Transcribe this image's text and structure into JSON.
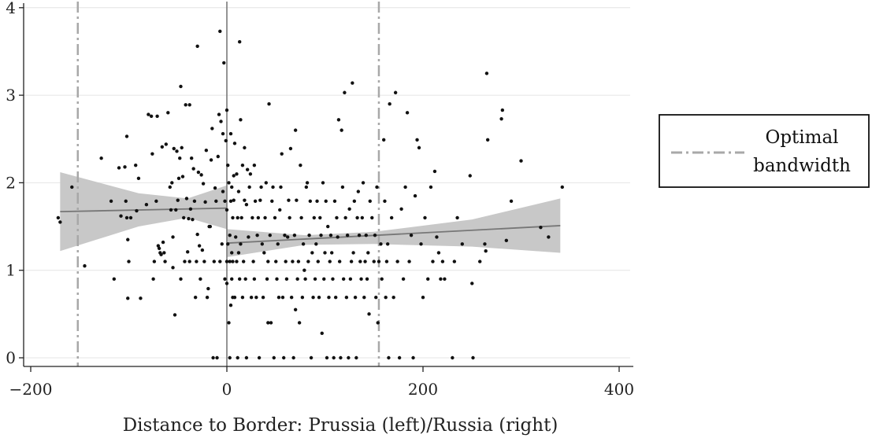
{
  "chart_data": {
    "type": "scatter",
    "title": "",
    "xlabel": "Distance to Border: Prussia (left)/Russia (right)",
    "ylabel": "",
    "xlim": [
      -210,
      410
    ],
    "ylim": [
      -0.1,
      4.1
    ],
    "xticks": [
      -200,
      0,
      200,
      400
    ],
    "xtick_labels": [
      "−200",
      "0",
      "200",
      "400"
    ],
    "yticks": [
      0,
      1,
      2,
      3,
      4
    ],
    "ytick_labels": [
      "0",
      "1",
      "2",
      "3",
      "4"
    ],
    "grid": "horizontal",
    "legend_placement": "right",
    "legend": {
      "line1": "Optimal",
      "line2": "bandwidth"
    },
    "bandwidth_lines": [
      -152,
      155
    ],
    "border_line": 0,
    "colors": {
      "points": "#111111",
      "fit_line": "#777777",
      "ci_band": "#c8c8c8",
      "bandwidth_line": "#a8a8a8",
      "border_line": "#7a7a7a",
      "grid": "#e4e4e4"
    },
    "fits": [
      {
        "segment": "left",
        "x": [
          -170,
          0
        ],
        "y": [
          1.67,
          1.71
        ],
        "ci_lower": [
          [
            -170,
            1.22
          ],
          [
            -90,
            1.5
          ],
          [
            -40,
            1.6
          ],
          [
            0,
            1.47
          ]
        ],
        "ci_upper": [
          [
            -170,
            2.12
          ],
          [
            -90,
            1.88
          ],
          [
            -40,
            1.82
          ],
          [
            0,
            1.97
          ]
        ]
      },
      {
        "segment": "right",
        "x": [
          0,
          340
        ],
        "y": [
          1.31,
          1.51
        ],
        "ci_lower": [
          [
            0,
            1.15
          ],
          [
            80,
            1.29
          ],
          [
            150,
            1.3
          ],
          [
            250,
            1.27
          ],
          [
            340,
            1.2
          ]
        ],
        "ci_upper": [
          [
            0,
            1.47
          ],
          [
            80,
            1.4
          ],
          [
            150,
            1.44
          ],
          [
            250,
            1.58
          ],
          [
            340,
            1.82
          ]
        ]
      }
    ],
    "points": [
      [
        -172,
        1.6
      ],
      [
        -170,
        1.55
      ],
      [
        -158,
        1.95
      ],
      [
        -145,
        1.05
      ],
      [
        -128,
        2.28
      ],
      [
        -118,
        1.79
      ],
      [
        -115,
        0.9
      ],
      [
        -110,
        2.17
      ],
      [
        -108,
        1.62
      ],
      [
        -104,
        2.18
      ],
      [
        -103,
        1.79
      ],
      [
        -102,
        1.6
      ],
      [
        -102,
        2.53
      ],
      [
        -101,
        1.35
      ],
      [
        -101,
        0.68
      ],
      [
        -100,
        1.1
      ],
      [
        -98,
        1.6
      ],
      [
        -93,
        2.2
      ],
      [
        -92,
        1.68
      ],
      [
        -90,
        2.05
      ],
      [
        -88,
        0.68
      ],
      [
        -82,
        1.75
      ],
      [
        -80,
        2.78
      ],
      [
        -77,
        2.76
      ],
      [
        -76,
        2.33
      ],
      [
        -75,
        0.9
      ],
      [
        -74,
        1.1
      ],
      [
        -72,
        1.79
      ],
      [
        -71,
        2.76
      ],
      [
        -70,
        1.28
      ],
      [
        -69,
        1.25
      ],
      [
        -68,
        1.2
      ],
      [
        -67,
        1.18
      ],
      [
        -66,
        2.41
      ],
      [
        -65,
        1.32
      ],
      [
        -64,
        1.2
      ],
      [
        -63,
        1.1
      ],
      [
        -62,
        2.44
      ],
      [
        -60,
        2.8
      ],
      [
        -58,
        1.95
      ],
      [
        -57,
        1.69
      ],
      [
        -56,
        2.0
      ],
      [
        -55,
        1.03
      ],
      [
        -55,
        1.38
      ],
      [
        -54,
        2.39
      ],
      [
        -53,
        0.49
      ],
      [
        -52,
        1.69
      ],
      [
        -51,
        2.36
      ],
      [
        -50,
        1.8
      ],
      [
        -49,
        2.05
      ],
      [
        -48,
        2.28
      ],
      [
        -47,
        0.9
      ],
      [
        -47,
        3.1
      ],
      [
        -46,
        2.4
      ],
      [
        -45,
        2.07
      ],
      [
        -44,
        1.6
      ],
      [
        -43,
        1.1
      ],
      [
        -42,
        2.89
      ],
      [
        -41,
        1.82
      ],
      [
        -40,
        1.21
      ],
      [
        -39,
        1.59
      ],
      [
        -38,
        1.1
      ],
      [
        -38,
        2.89
      ],
      [
        -37,
        1.7
      ],
      [
        -36,
        2.28
      ],
      [
        -35,
        1.58
      ],
      [
        -34,
        2.16
      ],
      [
        -33,
        1.79
      ],
      [
        -32,
        0.69
      ],
      [
        -31,
        1.1
      ],
      [
        -30,
        3.56
      ],
      [
        -30,
        1.41
      ],
      [
        -29,
        2.12
      ],
      [
        -28,
        1.28
      ],
      [
        -27,
        0.9
      ],
      [
        -26,
        2.09
      ],
      [
        -25,
        1.23
      ],
      [
        -24,
        1.99
      ],
      [
        -23,
        1.1
      ],
      [
        -22,
        1.78
      ],
      [
        -21,
        2.37
      ],
      [
        -20,
        0.69
      ],
      [
        -19,
        0.79
      ],
      [
        -18,
        1.5
      ],
      [
        -17,
        1.5
      ],
      [
        -16,
        2.26
      ],
      [
        -15,
        2.62
      ],
      [
        -14,
        0.0
      ],
      [
        -13,
        1.1
      ],
      [
        -12,
        1.94
      ],
      [
        -11,
        1.79
      ],
      [
        -10,
        0.0
      ],
      [
        -9,
        2.3
      ],
      [
        -8,
        2.78
      ],
      [
        -7,
        1.1
      ],
      [
        -7,
        3.73
      ],
      [
        -6,
        2.7
      ],
      [
        -5,
        1.3
      ],
      [
        -4,
        1.9
      ],
      [
        -4,
        2.56
      ],
      [
        -3,
        3.37
      ],
      [
        -2,
        1.79
      ],
      [
        -2,
        0.9
      ],
      [
        -1,
        2.48
      ],
      [
        0,
        1.1
      ],
      [
        0,
        0.85
      ],
      [
        0,
        2.83
      ],
      [
        0,
        1.69
      ],
      [
        1,
        1.3
      ],
      [
        1,
        2.2
      ],
      [
        2,
        0.4
      ],
      [
        2,
        2.0
      ],
      [
        3,
        1.1
      ],
      [
        3,
        0.0
      ],
      [
        3,
        1.4
      ],
      [
        4,
        1.79
      ],
      [
        4,
        2.56
      ],
      [
        4,
        0.6
      ],
      [
        5,
        1.2
      ],
      [
        5,
        0.9
      ],
      [
        5,
        1.95
      ],
      [
        6,
        1.1
      ],
      [
        6,
        0.69
      ],
      [
        6,
        1.6
      ],
      [
        7,
        2.08
      ],
      [
        7,
        1.8
      ],
      [
        8,
        2.45
      ],
      [
        8,
        0.69
      ],
      [
        9,
        1.38
      ],
      [
        10,
        1.1
      ],
      [
        10,
        2.1
      ],
      [
        11,
        0.0
      ],
      [
        11,
        1.6
      ],
      [
        12,
        1.9
      ],
      [
        12,
        1.2
      ],
      [
        13,
        3.61
      ],
      [
        13,
        0.9
      ],
      [
        14,
        2.72
      ],
      [
        14,
        1.3
      ],
      [
        15,
        1.6
      ],
      [
        16,
        0.69
      ],
      [
        16,
        2.2
      ],
      [
        17,
        1.1
      ],
      [
        18,
        1.8
      ],
      [
        18,
        2.4
      ],
      [
        19,
        0.9
      ],
      [
        20,
        1.75
      ],
      [
        20,
        0.0
      ],
      [
        21,
        2.15
      ],
      [
        22,
        1.38
      ],
      [
        23,
        1.95
      ],
      [
        24,
        2.1
      ],
      [
        25,
        0.69
      ],
      [
        26,
        1.6
      ],
      [
        27,
        1.1
      ],
      [
        28,
        2.2
      ],
      [
        28,
        0.9
      ],
      [
        29,
        1.79
      ],
      [
        30,
        0.69
      ],
      [
        31,
        1.4
      ],
      [
        32,
        1.6
      ],
      [
        33,
        0.0
      ],
      [
        34,
        1.8
      ],
      [
        35,
        1.95
      ],
      [
        36,
        1.3
      ],
      [
        37,
        0.69
      ],
      [
        38,
        1.2
      ],
      [
        39,
        1.6
      ],
      [
        40,
        2.0
      ],
      [
        41,
        0.9
      ],
      [
        42,
        1.1
      ],
      [
        42,
        0.4
      ],
      [
        43,
        2.9
      ],
      [
        44,
        1.4
      ],
      [
        45,
        0.4
      ],
      [
        46,
        1.79
      ],
      [
        47,
        1.95
      ],
      [
        48,
        0.0
      ],
      [
        49,
        1.6
      ],
      [
        50,
        1.1
      ],
      [
        51,
        0.9
      ],
      [
        52,
        1.3
      ],
      [
        53,
        0.69
      ],
      [
        54,
        1.69
      ],
      [
        55,
        1.95
      ],
      [
        56,
        2.33
      ],
      [
        57,
        0.69
      ],
      [
        58,
        0.0
      ],
      [
        59,
        1.4
      ],
      [
        60,
        1.1
      ],
      [
        61,
        0.9
      ],
      [
        62,
        1.38
      ],
      [
        63,
        1.8
      ],
      [
        64,
        1.6
      ],
      [
        65,
        2.39
      ],
      [
        66,
        0.69
      ],
      [
        67,
        1.1
      ],
      [
        68,
        0.0
      ],
      [
        69,
        1.4
      ],
      [
        70,
        0.55
      ],
      [
        70,
        2.6
      ],
      [
        71,
        1.8
      ],
      [
        72,
        0.9
      ],
      [
        73,
        1.1
      ],
      [
        74,
        0.4
      ],
      [
        75,
        2.2
      ],
      [
        76,
        1.6
      ],
      [
        77,
        0.69
      ],
      [
        78,
        1.3
      ],
      [
        79,
        1.0
      ],
      [
        80,
        0.9
      ],
      [
        81,
        1.95
      ],
      [
        82,
        2.0
      ],
      [
        83,
        1.1
      ],
      [
        84,
        1.4
      ],
      [
        85,
        1.79
      ],
      [
        86,
        0.0
      ],
      [
        87,
        1.2
      ],
      [
        88,
        0.69
      ],
      [
        89,
        1.6
      ],
      [
        90,
        0.9
      ],
      [
        91,
        1.3
      ],
      [
        92,
        1.79
      ],
      [
        93,
        1.1
      ],
      [
        94,
        0.69
      ],
      [
        95,
        1.6
      ],
      [
        96,
        1.4
      ],
      [
        97,
        0.28
      ],
      [
        98,
        2.0
      ],
      [
        99,
        0.9
      ],
      [
        100,
        1.2
      ],
      [
        101,
        1.79
      ],
      [
        102,
        0.0
      ],
      [
        103,
        1.5
      ],
      [
        104,
        0.69
      ],
      [
        105,
        1.1
      ],
      [
        106,
        1.4
      ],
      [
        107,
        1.2
      ],
      [
        108,
        0.9
      ],
      [
        109,
        0.0
      ],
      [
        110,
        1.79
      ],
      [
        111,
        0.69
      ],
      [
        112,
        1.6
      ],
      [
        113,
        1.38
      ],
      [
        114,
        2.72
      ],
      [
        115,
        1.1
      ],
      [
        116,
        0.0
      ],
      [
        117,
        2.6
      ],
      [
        118,
        1.95
      ],
      [
        119,
        0.9
      ],
      [
        120,
        3.03
      ],
      [
        121,
        1.6
      ],
      [
        122,
        0.69
      ],
      [
        123,
        1.4
      ],
      [
        124,
        0.0
      ],
      [
        125,
        1.7
      ],
      [
        126,
        0.9
      ],
      [
        127,
        1.1
      ],
      [
        128,
        3.14
      ],
      [
        129,
        1.2
      ],
      [
        130,
        1.79
      ],
      [
        131,
        0.69
      ],
      [
        132,
        0.0
      ],
      [
        133,
        1.6
      ],
      [
        134,
        1.9
      ],
      [
        135,
        1.4
      ],
      [
        136,
        1.1
      ],
      [
        137,
        0.9
      ],
      [
        138,
        1.6
      ],
      [
        139,
        2.0
      ],
      [
        140,
        0.69
      ],
      [
        141,
        1.1
      ],
      [
        142,
        1.4
      ],
      [
        143,
        0.9
      ],
      [
        144,
        1.2
      ],
      [
        145,
        0.5
      ],
      [
        146,
        1.79
      ],
      [
        148,
        1.6
      ],
      [
        150,
        1.1
      ],
      [
        151,
        1.4
      ],
      [
        152,
        0.69
      ],
      [
        153,
        1.95
      ],
      [
        154,
        0.4
      ],
      [
        155,
        1.1
      ],
      [
        157,
        1.3
      ],
      [
        158,
        0.9
      ],
      [
        160,
        2.49
      ],
      [
        161,
        1.79
      ],
      [
        162,
        0.69
      ],
      [
        163,
        1.1
      ],
      [
        164,
        1.3
      ],
      [
        165,
        0.0
      ],
      [
        166,
        2.9
      ],
      [
        168,
        1.6
      ],
      [
        170,
        0.69
      ],
      [
        172,
        3.03
      ],
      [
        174,
        1.1
      ],
      [
        176,
        0.0
      ],
      [
        178,
        1.7
      ],
      [
        180,
        0.9
      ],
      [
        182,
        1.95
      ],
      [
        184,
        2.8
      ],
      [
        186,
        1.1
      ],
      [
        188,
        1.4
      ],
      [
        190,
        0.0
      ],
      [
        192,
        1.85
      ],
      [
        194,
        2.49
      ],
      [
        196,
        2.4
      ],
      [
        198,
        1.3
      ],
      [
        200,
        0.69
      ],
      [
        202,
        1.6
      ],
      [
        205,
        0.9
      ],
      [
        208,
        1.95
      ],
      [
        210,
        1.1
      ],
      [
        212,
        2.13
      ],
      [
        214,
        1.38
      ],
      [
        216,
        1.2
      ],
      [
        218,
        0.9
      ],
      [
        220,
        1.1
      ],
      [
        222,
        0.9
      ],
      [
        230,
        0.0
      ],
      [
        232,
        1.1
      ],
      [
        235,
        1.6
      ],
      [
        240,
        1.3
      ],
      [
        248,
        2.08
      ],
      [
        250,
        0.85
      ],
      [
        251,
        0.0
      ],
      [
        258,
        1.1
      ],
      [
        263,
        1.3
      ],
      [
        264,
        1.22
      ],
      [
        265,
        3.25
      ],
      [
        266,
        2.49
      ],
      [
        280,
        2.73
      ],
      [
        281,
        2.83
      ],
      [
        285,
        1.34
      ],
      [
        290,
        1.79
      ],
      [
        300,
        2.25
      ],
      [
        320,
        1.49
      ],
      [
        328,
        1.38
      ],
      [
        342,
        1.95
      ]
    ]
  }
}
